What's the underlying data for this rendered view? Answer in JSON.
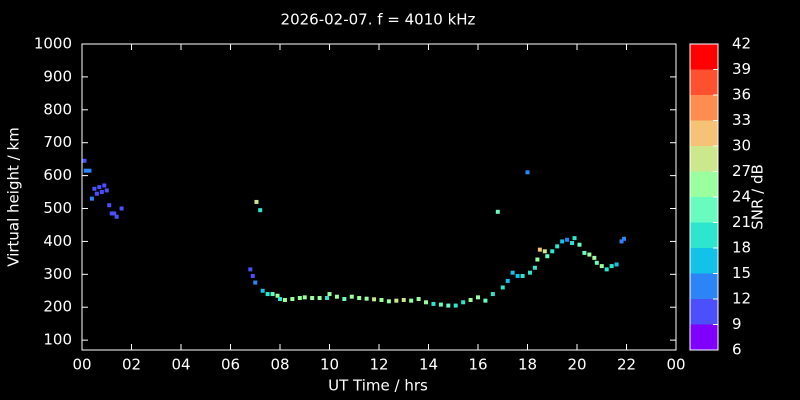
{
  "chart_data": {
    "type": "scatter",
    "title": "2026-02-07. f = 4010 kHz",
    "x_label": "UT Time / hrs",
    "y_label": "Virtual height / km",
    "xlim": [
      0,
      24
    ],
    "xticks": [
      {
        "value": 0,
        "label": "00"
      },
      {
        "value": 2,
        "label": "02"
      },
      {
        "value": 4,
        "label": "04"
      },
      {
        "value": 6,
        "label": "06"
      },
      {
        "value": 8,
        "label": "08"
      },
      10,
      12,
      14,
      16,
      18,
      20,
      22,
      {
        "value": 24,
        "label": "00"
      }
    ],
    "ylim": [
      70,
      1000
    ],
    "yticks": [
      100,
      200,
      300,
      400,
      500,
      600,
      700,
      800,
      900,
      1000
    ],
    "colorbar": {
      "label": "SNR / dB",
      "lim": [
        6,
        42
      ],
      "ticks": [
        6,
        9,
        12,
        15,
        18,
        21,
        24,
        27,
        30,
        33,
        36,
        39,
        42
      ],
      "colors": [
        "#7f00ff",
        "#4c50fc",
        "#2c84f7",
        "#12c2e8",
        "#2ee6d0",
        "#68fcc0",
        "#9aff9e",
        "#cde88c",
        "#f5c276",
        "#ff8c50",
        "#ff5030",
        "#ff0000"
      ]
    },
    "series": [
      {
        "x": [
          0.1,
          0.15,
          0.3,
          0.4,
          0.5,
          0.6,
          0.7,
          0.8,
          0.9,
          1.0,
          1.1,
          1.2,
          1.3,
          1.4,
          1.6,
          6.8,
          6.9,
          7.0,
          7.05,
          7.2,
          7.3,
          7.5,
          7.7,
          7.9,
          8.0,
          8.2,
          8.5,
          8.8,
          9.0,
          9.3,
          9.6,
          9.9,
          10.0,
          10.3,
          10.6,
          10.9,
          11.2,
          11.5,
          11.8,
          12.1,
          12.4,
          12.7,
          13.0,
          13.3,
          13.6,
          13.9,
          14.2,
          14.5,
          14.8,
          15.1,
          15.4,
          15.7,
          16.0,
          16.3,
          16.6,
          16.8,
          17.0,
          17.2,
          17.4,
          17.6,
          17.8,
          18.0,
          18.1,
          18.3,
          18.4,
          18.5,
          18.7,
          18.8,
          19.0,
          19.2,
          19.4,
          19.6,
          19.8,
          19.9,
          20.1,
          20.3,
          20.5,
          20.7,
          20.8,
          21.0,
          21.2,
          21.4,
          21.6,
          21.8,
          21.9
        ],
        "values": [
          645,
          615,
          615,
          530,
          560,
          545,
          565,
          550,
          570,
          555,
          510,
          485,
          485,
          475,
          500,
          315,
          295,
          275,
          520,
          495,
          250,
          240,
          240,
          235,
          225,
          222,
          225,
          228,
          230,
          228,
          228,
          228,
          240,
          232,
          225,
          232,
          228,
          226,
          224,
          222,
          218,
          220,
          222,
          220,
          225,
          215,
          210,
          208,
          205,
          205,
          215,
          222,
          230,
          220,
          240,
          490,
          260,
          280,
          305,
          295,
          295,
          610,
          305,
          320,
          345,
          375,
          370,
          355,
          370,
          385,
          400,
          405,
          395,
          410,
          390,
          365,
          360,
          350,
          335,
          325,
          315,
          325,
          330,
          400,
          408
        ],
        "snr": [
          10,
          12,
          12,
          12,
          10,
          10,
          10,
          11,
          10,
          10,
          10,
          10,
          10,
          9,
          11,
          10,
          11,
          12,
          27,
          18,
          16,
          20,
          22,
          24,
          20,
          24,
          24,
          26,
          24,
          26,
          24,
          20,
          24,
          24,
          22,
          26,
          24,
          26,
          28,
          26,
          26,
          28,
          28,
          26,
          24,
          24,
          20,
          22,
          22,
          18,
          20,
          24,
          26,
          22,
          20,
          22,
          18,
          16,
          15,
          17,
          18,
          12,
          18,
          20,
          24,
          30,
          28,
          22,
          20,
          18,
          16,
          14,
          18,
          20,
          21,
          22,
          24,
          26,
          22,
          24,
          20,
          20,
          16,
          12,
          12
        ]
      }
    ]
  }
}
